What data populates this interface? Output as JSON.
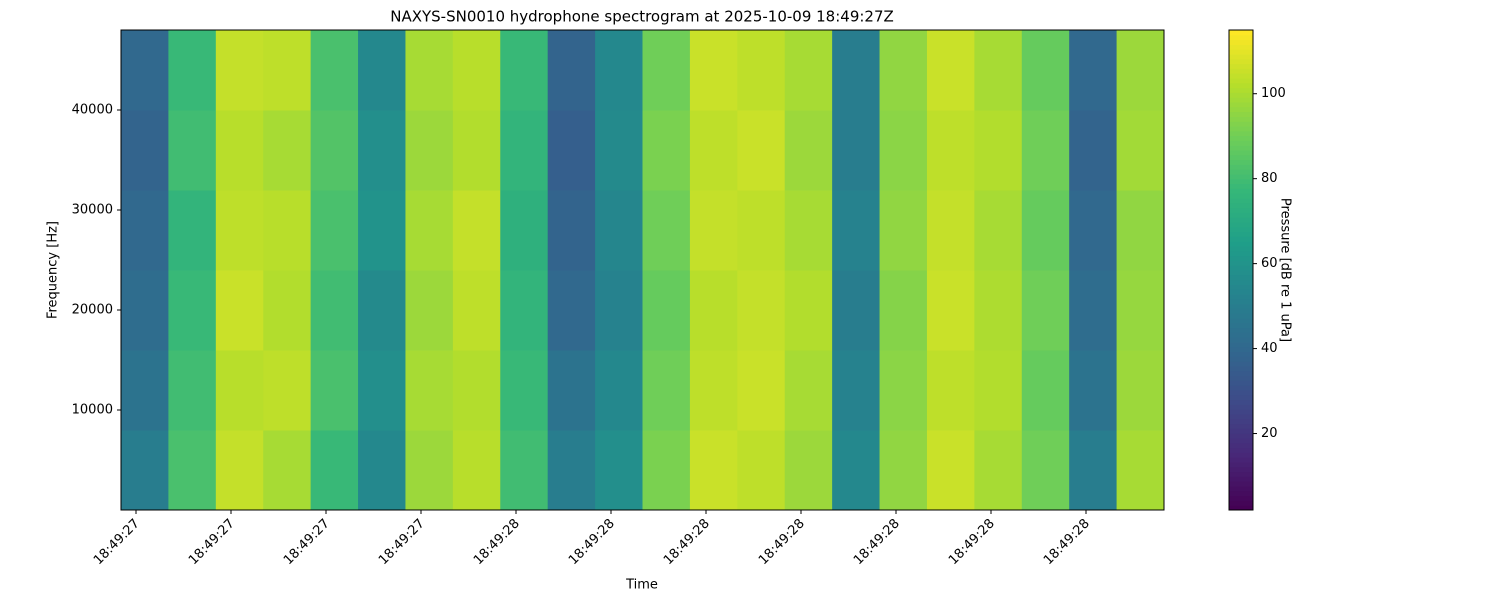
{
  "chart_data": {
    "type": "heatmap",
    "title": "NAXYS-SN0010 hydrophone spectrogram at 2025-10-09 18:49:27Z",
    "x_label": "Time",
    "y_label": "Frequency [Hz]",
    "xticks": [
      "18:49:27",
      "18:49:27",
      "18:49:27",
      "18:49:27",
      "18:49:28",
      "18:49:28",
      "18:49:28",
      "18:49:28",
      "18:49:28",
      "18:49:28",
      "18:49:28"
    ],
    "ylim": [
      0,
      48000
    ],
    "yticks": [
      10000,
      20000,
      30000,
      40000
    ],
    "y_bins": [
      0,
      8000,
      16000,
      24000,
      32000,
      40000,
      48000
    ],
    "values": [
      [
        50,
        82,
        105,
        100,
        78,
        55,
        98,
        103,
        80,
        50,
        58,
        92,
        106,
        104,
        98,
        55,
        96,
        106,
        100,
        90,
        50,
        100
      ],
      [
        45,
        80,
        103,
        104,
        82,
        58,
        100,
        102,
        78,
        45,
        55,
        90,
        104,
        106,
        100,
        52,
        95,
        104,
        102,
        88,
        45,
        98
      ],
      [
        42,
        78,
        106,
        102,
        80,
        56,
        98,
        104,
        76,
        40,
        52,
        88,
        103,
        105,
        102,
        50,
        94,
        106,
        101,
        90,
        42,
        97
      ],
      [
        40,
        76,
        104,
        103,
        82,
        60,
        100,
        105,
        74,
        38,
        54,
        90,
        105,
        104,
        100,
        52,
        96,
        105,
        100,
        88,
        40,
        96
      ],
      [
        38,
        80,
        103,
        100,
        84,
        58,
        98,
        102,
        76,
        36,
        56,
        92,
        104,
        106,
        98,
        50,
        95,
        104,
        102,
        90,
        38,
        99
      ],
      [
        40,
        78,
        105,
        104,
        82,
        55,
        100,
        103,
        78,
        38,
        55,
        90,
        106,
        104,
        100,
        50,
        96,
        106,
        100,
        88,
        40,
        98
      ]
    ],
    "colormap": "viridis",
    "colorbar_label": "Pressure [dB re 1 uPa]",
    "clim": [
      2,
      115
    ],
    "colorbar_ticks": [
      20,
      40,
      60,
      80,
      100
    ]
  }
}
